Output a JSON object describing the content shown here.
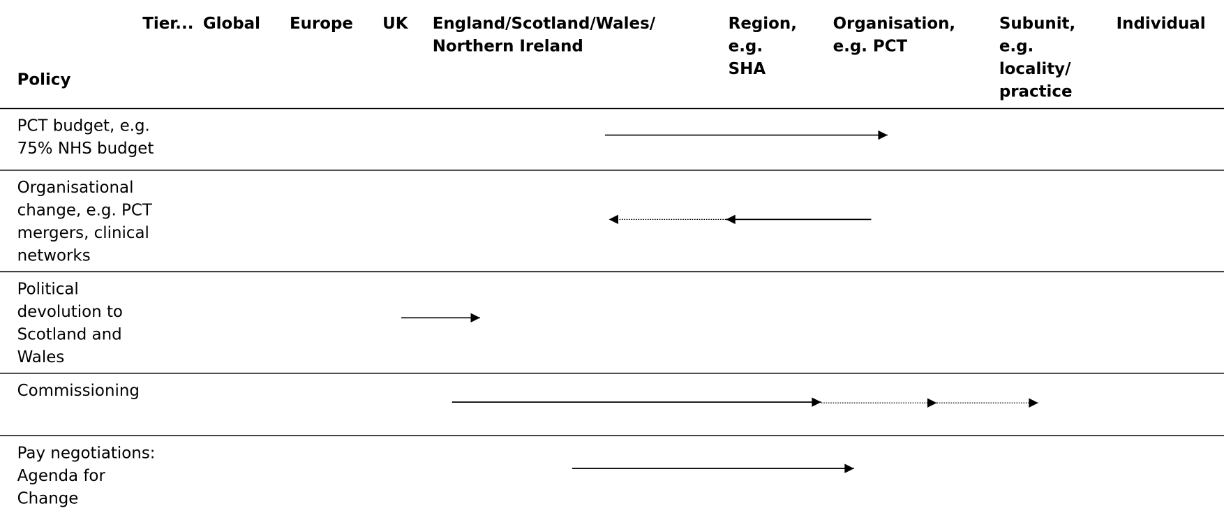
{
  "table": {
    "corner_label": "Policy",
    "columns": [
      [
        "Tier..."
      ],
      [
        "Global"
      ],
      [
        "Europe"
      ],
      [
        "UK"
      ],
      [
        "England/Scotland/Wales/",
        "Northern Ireland"
      ],
      [
        "Region,",
        "e.g.",
        "SHA"
      ],
      [
        "Organisation,",
        "e.g. PCT"
      ],
      [
        "Subunit,",
        "e.g.",
        "locality/",
        "practice"
      ],
      [
        "Individual"
      ]
    ],
    "rows": [
      [
        "PCT budget, e.g.",
        "75% NHS budget"
      ],
      [
        "Organisational",
        "change, e.g. PCT",
        "mergers, clinical",
        "networks"
      ],
      [
        "Political",
        "devolution to",
        "Scotland and",
        "Wales"
      ],
      [
        "Commissioning"
      ],
      [
        "Pay negotiations:",
        "Agenda for",
        "Change"
      ]
    ]
  }
}
